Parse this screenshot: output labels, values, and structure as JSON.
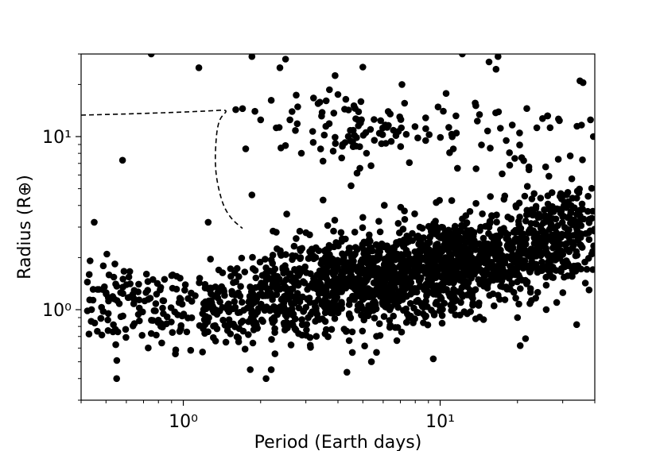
{
  "chart_data": {
    "type": "scatter",
    "xlabel": "Period (Earth days)",
    "ylabel": "Radius (R⊕)",
    "xscale": "log",
    "yscale": "log",
    "xlim": [
      0.4,
      40
    ],
    "ylim": [
      0.3,
      30
    ],
    "grid": false,
    "marker_color": "#000000",
    "x_ticks": [
      {
        "value": 1,
        "label": "10⁰"
      },
      {
        "value": 10,
        "label": "10¹"
      }
    ],
    "y_ticks": [
      {
        "value": 1,
        "label": "10⁰"
      },
      {
        "value": 10,
        "label": "10¹"
      }
    ],
    "boundary_curve": {
      "style": "dashed",
      "points": [
        [
          0.4,
          13.3
        ],
        [
          0.7,
          13.6
        ],
        [
          1.0,
          13.85
        ],
        [
          1.3,
          14.1
        ],
        [
          1.5,
          14.3
        ],
        [
          1.4,
          13.0
        ],
        [
          1.36,
          11.5
        ],
        [
          1.34,
          9.5
        ],
        [
          1.33,
          7.5
        ],
        [
          1.34,
          6.0
        ],
        [
          1.38,
          4.8
        ],
        [
          1.44,
          3.9
        ],
        [
          1.55,
          3.3
        ],
        [
          1.7,
          2.95
        ]
      ]
    },
    "scatter": {
      "listed_points": [
        [
          0.45,
          3.2
        ],
        [
          0.58,
          7.3
        ],
        [
          0.55,
          0.4
        ],
        [
          0.75,
          30
        ],
        [
          1.15,
          25
        ],
        [
          1.85,
          29
        ],
        [
          2.5,
          28
        ],
        [
          1.25,
          3.2
        ],
        [
          1.85,
          4.6
        ],
        [
          1.75,
          8.5
        ],
        [
          1.6,
          14.3
        ],
        [
          1.7,
          14.5
        ],
        [
          1.9,
          14
        ],
        [
          2.0,
          12.5
        ],
        [
          2.2,
          16.2
        ],
        [
          2.6,
          12.5
        ],
        [
          2.4,
          8.6
        ],
        [
          3.4,
          15.8
        ],
        [
          3.6,
          16.1
        ],
        [
          4.0,
          17.5
        ],
        [
          3.9,
          22.5
        ],
        [
          5.0,
          25.2
        ],
        [
          7.1,
          20
        ],
        [
          12.2,
          30
        ],
        [
          15.5,
          27
        ],
        [
          16.8,
          29
        ],
        [
          16.5,
          24.5
        ],
        [
          35,
          21
        ],
        [
          36,
          20.5
        ],
        [
          38.5,
          12.5
        ],
        [
          39.5,
          10
        ],
        [
          2.1,
          0.4
        ],
        [
          2.2,
          0.45
        ],
        [
          5.4,
          0.5
        ],
        [
          9.4,
          0.52
        ],
        [
          20.5,
          0.62
        ],
        [
          21.5,
          0.68
        ],
        [
          34,
          0.82
        ],
        [
          38,
          1.3
        ],
        [
          2.3,
          2.8
        ],
        [
          3.5,
          4.3
        ],
        [
          4.5,
          5.2
        ]
      ],
      "clusters": [
        {
          "center": [
            0.6,
            1.05
          ],
          "spread": [
            0.12,
            0.12
          ],
          "count": 110
        },
        {
          "center": [
            1.3,
            1.05
          ],
          "spread": [
            0.14,
            0.12
          ],
          "count": 140
        },
        {
          "center": [
            2.6,
            1.15
          ],
          "spread": [
            0.15,
            0.12
          ],
          "count": 260
        },
        {
          "center": [
            5.5,
            1.45
          ],
          "spread": [
            0.18,
            0.13
          ],
          "count": 620
        },
        {
          "center": [
            12,
            1.9
          ],
          "spread": [
            0.2,
            0.13
          ],
          "count": 700
        },
        {
          "center": [
            27,
            2.5
          ],
          "spread": [
            0.13,
            0.11
          ],
          "count": 260
        },
        {
          "center": [
            4.5,
            11
          ],
          "spread": [
            0.14,
            0.1
          ],
          "count": 80
        },
        {
          "center": [
            14,
            10
          ],
          "spread": [
            0.3,
            0.16
          ],
          "count": 70
        },
        {
          "center": [
            30,
            4
          ],
          "spread": [
            0.08,
            0.08
          ],
          "count": 60
        }
      ]
    }
  }
}
